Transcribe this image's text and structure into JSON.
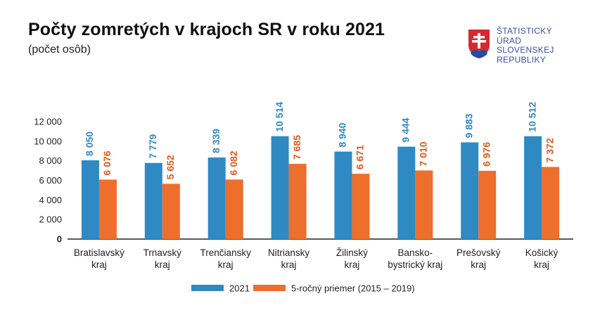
{
  "header": {
    "title": "Počty zomretých v krajoch SR v roku 2021",
    "subtitle": "(počet osôb)"
  },
  "logo": {
    "lines": [
      "ŠTATISTICKÝ",
      "ÚRAD",
      "SLOVENSKEJ",
      "REPUBLIKY"
    ],
    "icon": "slovak-coat-of-arms-icon"
  },
  "colors": {
    "series_2021": "#2f8ac4",
    "series_avg": "#ee6e2c",
    "label_2021": "#2f8ac4",
    "label_avg": "#e05a1c",
    "logo_text": "#3a4ea5"
  },
  "chart_data": {
    "type": "bar",
    "categories": [
      [
        "Bratislavský",
        "kraj"
      ],
      [
        "Trnavský",
        "kraj"
      ],
      [
        "Trenčiansky",
        "kraj"
      ],
      [
        "Nitriansky",
        "kraj"
      ],
      [
        "Žilinský",
        "kraj"
      ],
      [
        "Bansko-",
        "bystrický kraj"
      ],
      [
        "Prešovský",
        "kraj"
      ],
      [
        "Košický",
        "kraj"
      ]
    ],
    "series": [
      {
        "name": "2021",
        "values": [
          8050,
          7779,
          8339,
          10514,
          8940,
          9444,
          9883,
          10512
        ],
        "labels": [
          "8 050",
          "7 779",
          "8 339",
          "10 514",
          "8 940",
          "9 444",
          "9 883",
          "10 512"
        ]
      },
      {
        "name": "5-ročný priemer (2015 – 2019)",
        "values": [
          6076,
          5652,
          6082,
          7685,
          6671,
          7010,
          6976,
          7372
        ],
        "labels": [
          "6 076",
          "5 652",
          "6 082",
          "7 685",
          "6 671",
          "7 010",
          "6 976",
          "7 372"
        ]
      }
    ],
    "yticks": [
      0,
      2000,
      4000,
      6000,
      8000,
      10000,
      12000
    ],
    "ytick_labels": [
      "0",
      "2 000",
      "4 000",
      "6 000",
      "8 000",
      "10 000",
      "12 000"
    ],
    "ylim": [
      0,
      12000
    ],
    "grid": false,
    "legend_position": "bottom-center"
  }
}
